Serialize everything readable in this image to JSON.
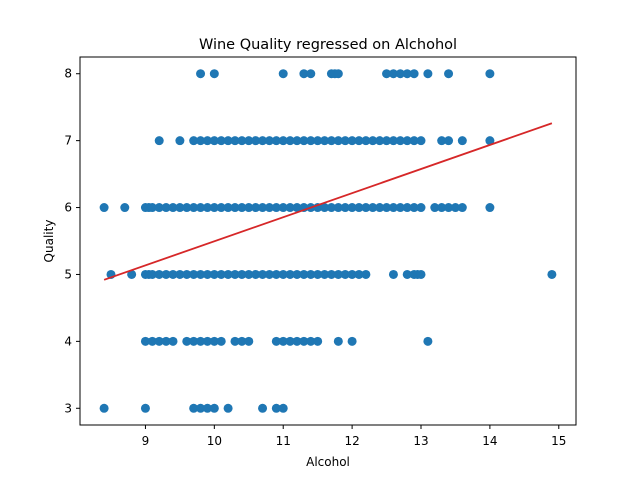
{
  "chart_data": {
    "type": "scatter",
    "title": "Wine Quality regressed on Alchohol",
    "xlabel": "Alcohol",
    "ylabel": "Quality",
    "xlim": [
      8.05,
      15.25
    ],
    "ylim": [
      2.75,
      8.25
    ],
    "xticks": [
      "9",
      "10",
      "11",
      "12",
      "13",
      "14",
      "15"
    ],
    "yticks": [
      "3",
      "4",
      "5",
      "6",
      "7",
      "8"
    ],
    "grid": false,
    "legend": "none",
    "colors": {
      "points": "#1f77b4",
      "regression_line": "#d62728"
    },
    "series": [
      {
        "kind": "points",
        "points": [
          [
            9.8,
            8
          ],
          [
            10.0,
            8
          ],
          [
            11.0,
            8
          ],
          [
            11.3,
            8
          ],
          [
            11.4,
            8
          ],
          [
            11.7,
            8
          ],
          [
            11.75,
            8
          ],
          [
            11.8,
            8
          ],
          [
            12.5,
            8
          ],
          [
            12.6,
            8
          ],
          [
            12.7,
            8
          ],
          [
            12.8,
            8
          ],
          [
            12.9,
            8
          ],
          [
            13.1,
            8
          ],
          [
            13.4,
            8
          ],
          [
            14.0,
            8
          ],
          [
            9.2,
            7
          ],
          [
            9.5,
            7
          ],
          [
            9.7,
            7
          ],
          [
            9.8,
            7
          ],
          [
            9.9,
            7
          ],
          [
            10.0,
            7
          ],
          [
            10.1,
            7
          ],
          [
            10.2,
            7
          ],
          [
            10.3,
            7
          ],
          [
            10.4,
            7
          ],
          [
            10.5,
            7
          ],
          [
            10.6,
            7
          ],
          [
            10.7,
            7
          ],
          [
            10.8,
            7
          ],
          [
            10.9,
            7
          ],
          [
            11.0,
            7
          ],
          [
            11.1,
            7
          ],
          [
            11.2,
            7
          ],
          [
            11.3,
            7
          ],
          [
            11.4,
            7
          ],
          [
            11.5,
            7
          ],
          [
            11.6,
            7
          ],
          [
            11.7,
            7
          ],
          [
            11.8,
            7
          ],
          [
            11.9,
            7
          ],
          [
            12.0,
            7
          ],
          [
            12.1,
            7
          ],
          [
            12.2,
            7
          ],
          [
            12.3,
            7
          ],
          [
            12.4,
            7
          ],
          [
            12.5,
            7
          ],
          [
            12.6,
            7
          ],
          [
            12.7,
            7
          ],
          [
            12.8,
            7
          ],
          [
            12.9,
            7
          ],
          [
            13.0,
            7
          ],
          [
            13.3,
            7
          ],
          [
            13.4,
            7
          ],
          [
            13.6,
            7
          ],
          [
            14.0,
            7
          ],
          [
            8.4,
            6
          ],
          [
            8.7,
            6
          ],
          [
            9.0,
            6
          ],
          [
            9.05,
            6
          ],
          [
            9.1,
            6
          ],
          [
            9.2,
            6
          ],
          [
            9.3,
            6
          ],
          [
            9.4,
            6
          ],
          [
            9.5,
            6
          ],
          [
            9.6,
            6
          ],
          [
            9.7,
            6
          ],
          [
            9.8,
            6
          ],
          [
            9.9,
            6
          ],
          [
            10.0,
            6
          ],
          [
            10.1,
            6
          ],
          [
            10.2,
            6
          ],
          [
            10.3,
            6
          ],
          [
            10.4,
            6
          ],
          [
            10.5,
            6
          ],
          [
            10.6,
            6
          ],
          [
            10.7,
            6
          ],
          [
            10.8,
            6
          ],
          [
            10.9,
            6
          ],
          [
            11.0,
            6
          ],
          [
            11.1,
            6
          ],
          [
            11.2,
            6
          ],
          [
            11.3,
            6
          ],
          [
            11.4,
            6
          ],
          [
            11.5,
            6
          ],
          [
            11.6,
            6
          ],
          [
            11.7,
            6
          ],
          [
            11.8,
            6
          ],
          [
            11.9,
            6
          ],
          [
            12.0,
            6
          ],
          [
            12.1,
            6
          ],
          [
            12.2,
            6
          ],
          [
            12.3,
            6
          ],
          [
            12.4,
            6
          ],
          [
            12.5,
            6
          ],
          [
            12.6,
            6
          ],
          [
            12.7,
            6
          ],
          [
            12.8,
            6
          ],
          [
            12.9,
            6
          ],
          [
            13.0,
            6
          ],
          [
            13.2,
            6
          ],
          [
            13.3,
            6
          ],
          [
            13.4,
            6
          ],
          [
            13.5,
            6
          ],
          [
            13.6,
            6
          ],
          [
            14.0,
            6
          ],
          [
            8.5,
            5
          ],
          [
            8.8,
            5
          ],
          [
            9.0,
            5
          ],
          [
            9.05,
            5
          ],
          [
            9.1,
            5
          ],
          [
            9.2,
            5
          ],
          [
            9.3,
            5
          ],
          [
            9.4,
            5
          ],
          [
            9.5,
            5
          ],
          [
            9.6,
            5
          ],
          [
            9.7,
            5
          ],
          [
            9.8,
            5
          ],
          [
            9.9,
            5
          ],
          [
            10.0,
            5
          ],
          [
            10.1,
            5
          ],
          [
            10.2,
            5
          ],
          [
            10.3,
            5
          ],
          [
            10.4,
            5
          ],
          [
            10.5,
            5
          ],
          [
            10.6,
            5
          ],
          [
            10.7,
            5
          ],
          [
            10.8,
            5
          ],
          [
            10.9,
            5
          ],
          [
            11.0,
            5
          ],
          [
            11.1,
            5
          ],
          [
            11.2,
            5
          ],
          [
            11.3,
            5
          ],
          [
            11.4,
            5
          ],
          [
            11.5,
            5
          ],
          [
            11.6,
            5
          ],
          [
            11.7,
            5
          ],
          [
            11.8,
            5
          ],
          [
            11.9,
            5
          ],
          [
            12.0,
            5
          ],
          [
            12.1,
            5
          ],
          [
            12.2,
            5
          ],
          [
            12.6,
            5
          ],
          [
            12.8,
            5
          ],
          [
            12.9,
            5
          ],
          [
            12.95,
            5
          ],
          [
            13.0,
            5
          ],
          [
            14.9,
            5
          ],
          [
            9.0,
            4
          ],
          [
            9.1,
            4
          ],
          [
            9.2,
            4
          ],
          [
            9.3,
            4
          ],
          [
            9.4,
            4
          ],
          [
            9.6,
            4
          ],
          [
            9.7,
            4
          ],
          [
            9.8,
            4
          ],
          [
            9.9,
            4
          ],
          [
            10.0,
            4
          ],
          [
            10.1,
            4
          ],
          [
            10.3,
            4
          ],
          [
            10.4,
            4
          ],
          [
            10.5,
            4
          ],
          [
            10.9,
            4
          ],
          [
            11.0,
            4
          ],
          [
            11.1,
            4
          ],
          [
            11.2,
            4
          ],
          [
            11.3,
            4
          ],
          [
            11.4,
            4
          ],
          [
            11.5,
            4
          ],
          [
            11.8,
            4
          ],
          [
            12.0,
            4
          ],
          [
            13.1,
            4
          ],
          [
            8.4,
            3
          ],
          [
            9.0,
            3
          ],
          [
            9.7,
            3
          ],
          [
            9.8,
            3
          ],
          [
            9.9,
            3
          ],
          [
            10.0,
            3
          ],
          [
            10.2,
            3
          ],
          [
            10.7,
            3
          ],
          [
            10.9,
            3
          ],
          [
            11.0,
            3
          ]
        ]
      },
      {
        "kind": "line",
        "points": [
          [
            8.4,
            4.92
          ],
          [
            14.9,
            7.26
          ]
        ]
      }
    ]
  }
}
